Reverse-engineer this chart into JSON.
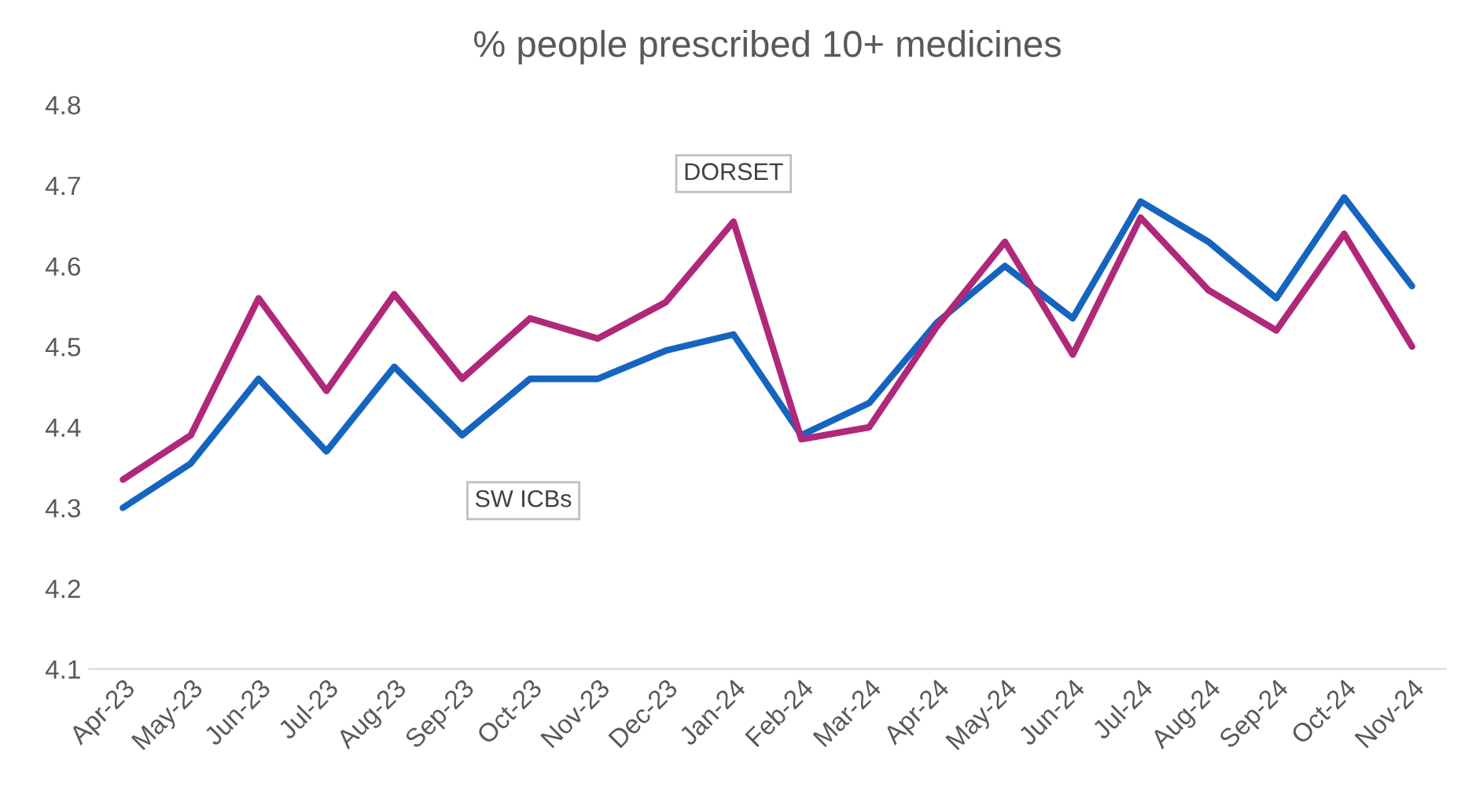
{
  "chart_data": {
    "type": "line",
    "title": "% people prescribed 10+ medicines",
    "categories": [
      "Apr-23",
      "May-23",
      "Jun-23",
      "Jul-23",
      "Aug-23",
      "Sep-23",
      "Oct-23",
      "Nov-23",
      "Dec-23",
      "Jan-24",
      "Feb-24",
      "Mar-24",
      "Apr-24",
      "May-24",
      "Jun-24",
      "Jul-24",
      "Aug-24",
      "Sep-24",
      "Oct-24",
      "Nov-24"
    ],
    "series": [
      {
        "name": "SW ICBs",
        "color": "#1565c0",
        "values": [
          4.3,
          4.355,
          4.46,
          4.37,
          4.475,
          4.39,
          4.46,
          4.46,
          4.495,
          4.515,
          4.39,
          4.43,
          4.53,
          4.6,
          4.535,
          4.68,
          4.63,
          4.56,
          4.685,
          4.575
        ]
      },
      {
        "name": "DORSET",
        "color": "#b0287a",
        "values": [
          4.335,
          4.39,
          4.56,
          4.445,
          4.565,
          4.46,
          4.535,
          4.51,
          4.555,
          4.655,
          4.385,
          4.4,
          4.525,
          4.63,
          4.49,
          4.66,
          4.57,
          4.52,
          4.64,
          4.5
        ]
      }
    ],
    "ylim": [
      4.1,
      4.8
    ],
    "yticks": [
      4.1,
      4.2,
      4.3,
      4.4,
      4.5,
      4.6,
      4.7,
      4.8
    ],
    "grid": false,
    "legend": false,
    "marker": "none",
    "line_style": "solid"
  }
}
